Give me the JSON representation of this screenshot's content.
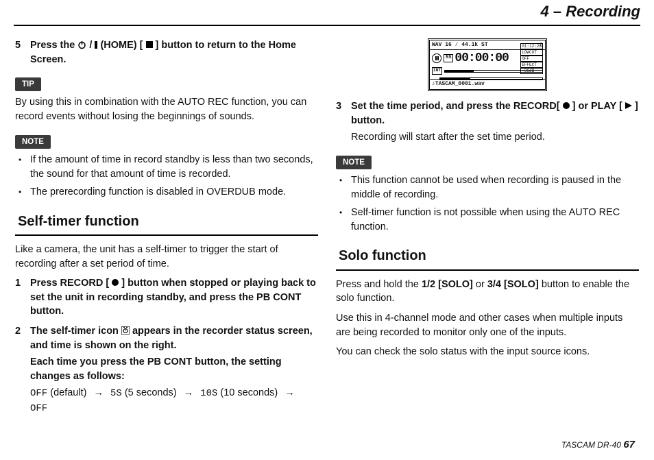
{
  "header": {
    "title": "4 – Recording"
  },
  "left": {
    "step5": {
      "num": "5",
      "text_pre": "Press the ",
      "text_mid": " (HOME) [ ",
      "text_post": " ] button to return to the Home Screen."
    },
    "tip_label": "TIP",
    "tip_text": "By using this in combination with the AUTO REC function, you can record events without losing the beginnings of sounds.",
    "note_label": "NOTE",
    "note_items": [
      "If the amount of time in record standby is less than two seconds, the sound for that amount of time is recorded.",
      "The prerecording function is disabled in OVERDUB mode."
    ],
    "section": "Self-timer function",
    "section_intro": "Like a camera, the unit has a self-timer to trigger the start of recording after a set period of time.",
    "step1": {
      "num": "1",
      "text_a": "Press RECORD [ ",
      "text_b": " ] button when stopped or playing back to set the unit in recording standby, and press the PB CONT button."
    },
    "step2": {
      "num": "2",
      "line1a": "The self-timer icon ",
      "line1b": " appears in the recorder status screen, and time is shown on the right.",
      "line2": "Each time you press the PB CONT button, the setting changes as follows:",
      "cycle": {
        "off1": "OFF",
        "default": " (default) ",
        "s5": "5S",
        "s5_txt": " (5 seconds) ",
        "s10": "10S",
        "s10_txt": " (10 seconds) ",
        "off2": "OFF",
        "arrow": "→"
      }
    }
  },
  "right": {
    "lcd": {
      "top_left": "WAV 16 ∕ 44.1k ST",
      "top_right": "▯",
      "ss_label": "5S",
      "time": "00:00:00",
      "time_small": "01:12:26",
      "side": [
        "LOWCUT",
        "OFF",
        "EFFECT",
        "-36dB"
      ],
      "meter_l": "INT",
      "file": "♪TASCAM_0001.wav",
      "meter_fill_pct": 30
    },
    "step3": {
      "num": "3",
      "line1a": "Set the time period, and press the RECORD[ ",
      "line1b": " ] or PLAY [ ",
      "line1c": " ] button.",
      "line2": "Recording will start after the set time period."
    },
    "note_label": "NOTE",
    "note_items": [
      "This function cannot be used when recording is paused in the middle of recording.",
      "Self-timer function is not possible when using the AUTO REC function."
    ],
    "section": "Solo function",
    "solo_p1a": "Press and hold the ",
    "solo_b1": "1/2 [SOLO]",
    "solo_p1b": " or ",
    "solo_b2": "3/4 [SOLO]",
    "solo_p1c": " button to enable the solo function.",
    "solo_p2": "Use this in 4-channel mode and other cases when multiple inputs are being recorded to monitor only one of the inputs.",
    "solo_p3": "You can check the solo status with the input source icons."
  },
  "footer": {
    "model": "TASCAM DR-40 ",
    "page": "67"
  },
  "colors": {
    "badge_bg": "#3a3a3a",
    "text": "#111111",
    "rule": "#000000"
  }
}
